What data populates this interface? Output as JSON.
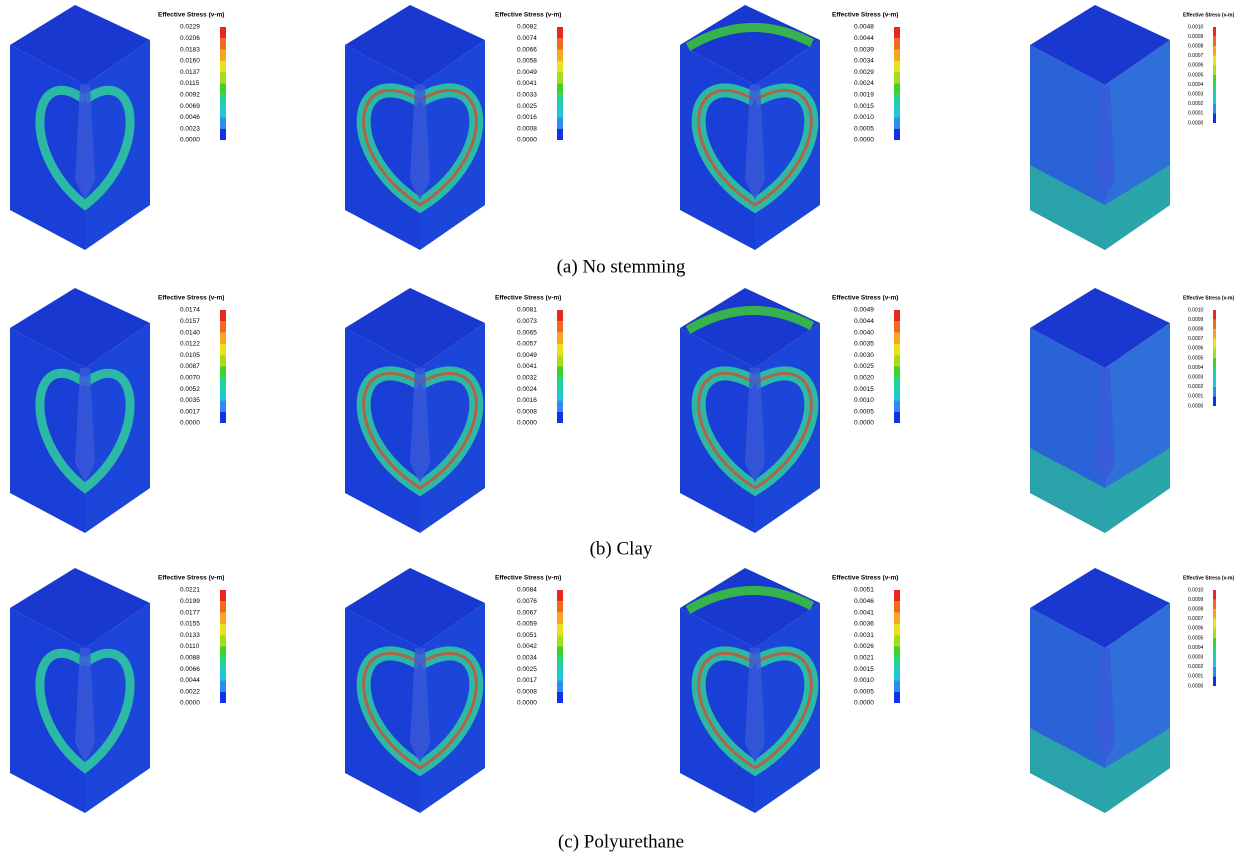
{
  "rows": [
    {
      "caption": "(a) No stemming",
      "panels": [
        {
          "title": "Effective Stress (v-m)",
          "labels": [
            "0.0229",
            "0.0206",
            "0.0183",
            "0.0160",
            "0.0137",
            "0.0115",
            "0.0092",
            "0.0069",
            "0.0046",
            "0.0023",
            "0.0000"
          ]
        },
        {
          "title": "Effective Stress (v-m)",
          "labels": [
            "0.0082",
            "0.0074",
            "0.0066",
            "0.0058",
            "0.0049",
            "0.0041",
            "0.0033",
            "0.0025",
            "0.0016",
            "0.0008",
            "0.0000"
          ]
        },
        {
          "title": "Effective Stress (v-m)",
          "labels": [
            "0.0048",
            "0.0044",
            "0.0039",
            "0.0034",
            "0.0029",
            "0.0024",
            "0.0019",
            "0.0015",
            "0.0010",
            "0.0005",
            "0.0000"
          ]
        },
        {
          "title": "Effective Stress (v-m)",
          "labels": [
            "0.0010",
            "0.0009",
            "0.0008",
            "0.0007",
            "0.0006",
            "0.0005",
            "0.0004",
            "0.0003",
            "0.0002",
            "0.0001",
            "0.0000"
          ]
        }
      ]
    },
    {
      "caption": "(b) Clay",
      "panels": [
        {
          "title": "Effective Stress (v-m)",
          "labels": [
            "0.0174",
            "0.0157",
            "0.0140",
            "0.0122",
            "0.0105",
            "0.0087",
            "0.0070",
            "0.0052",
            "0.0035",
            "0.0017",
            "0.0000"
          ]
        },
        {
          "title": "Effective Stress (v-m)",
          "labels": [
            "0.0081",
            "0.0073",
            "0.0065",
            "0.0057",
            "0.0049",
            "0.0041",
            "0.0032",
            "0.0024",
            "0.0016",
            "0.0008",
            "0.0000"
          ]
        },
        {
          "title": "Effective Stress (v-m)",
          "labels": [
            "0.0049",
            "0.0044",
            "0.0040",
            "0.0035",
            "0.0030",
            "0.0025",
            "0.0020",
            "0.0015",
            "0.0010",
            "0.0005",
            "0.0000"
          ]
        },
        {
          "title": "Effective Stress (v-m)",
          "labels": [
            "0.0010",
            "0.0009",
            "0.0008",
            "0.0007",
            "0.0006",
            "0.0005",
            "0.0004",
            "0.0003",
            "0.0002",
            "0.0001",
            "0.0000"
          ]
        }
      ]
    },
    {
      "caption": "(c) Polyurethane",
      "panels": [
        {
          "title": "Effective Stress (v-m)",
          "labels": [
            "0.0221",
            "0.0199",
            "0.0177",
            "0.0155",
            "0.0133",
            "0.0110",
            "0.0088",
            "0.0066",
            "0.0044",
            "0.0022",
            "0.0000"
          ]
        },
        {
          "title": "Effective Stress (v-m)",
          "labels": [
            "0.0084",
            "0.0076",
            "0.0067",
            "0.0059",
            "0.0051",
            "0.0042",
            "0.0034",
            "0.0025",
            "0.0017",
            "0.0008",
            "0.0000"
          ]
        },
        {
          "title": "Effective Stress (v-m)",
          "labels": [
            "0.0051",
            "0.0046",
            "0.0041",
            "0.0036",
            "0.0031",
            "0.0026",
            "0.0021",
            "0.0015",
            "0.0010",
            "0.0005",
            "0.0000"
          ]
        },
        {
          "title": "Effective Stress (v-m)",
          "labels": [
            "0.0010",
            "0.0009",
            "0.0008",
            "0.0007",
            "0.0006",
            "0.0005",
            "0.0004",
            "0.0003",
            "0.0002",
            "0.0001",
            "0.0000"
          ]
        }
      ]
    }
  ]
}
